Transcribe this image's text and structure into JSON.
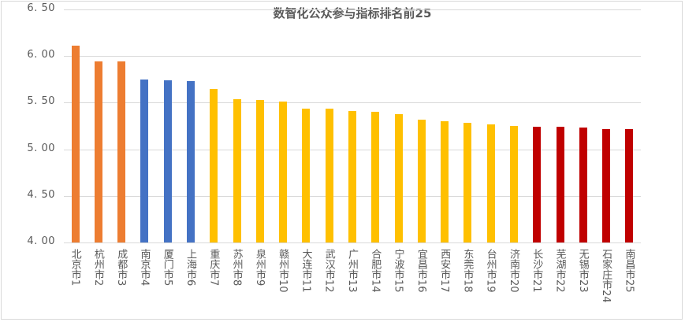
{
  "chart_data": {
    "type": "bar",
    "title": "数智化公众参与指标排名前25",
    "xlabel": "",
    "ylabel": "",
    "ylim": [
      4.0,
      6.5
    ],
    "yticks": [
      "6.50",
      "6.00",
      "5.50",
      "5.00",
      "4.50",
      "4.00"
    ],
    "grid": true,
    "legend": null,
    "categories": [
      "北京市1",
      "杭州市2",
      "成都市3",
      "南京市4",
      "厦门市5",
      "上海市6",
      "重庆市7",
      "苏州市8",
      "泉州市9",
      "赣州市10",
      "大连市11",
      "武汉市12",
      "广州市13",
      "合肥市14",
      "宁波市15",
      "宜昌市16",
      "西安市17",
      "东莞市18",
      "台州市19",
      "济南市20",
      "长沙市21",
      "芜湖市22",
      "无锡市23",
      "石家庄市24",
      "南昌市25"
    ],
    "values": [
      6.11,
      5.94,
      5.94,
      5.75,
      5.74,
      5.73,
      5.65,
      5.54,
      5.53,
      5.51,
      5.44,
      5.44,
      5.41,
      5.4,
      5.38,
      5.32,
      5.3,
      5.28,
      5.27,
      5.25,
      5.24,
      5.24,
      5.23,
      5.22,
      5.22
    ],
    "bar_colors": [
      "#ED7D31",
      "#ED7D31",
      "#ED7D31",
      "#4472C4",
      "#4472C4",
      "#4472C4",
      "#FFC000",
      "#FFC000",
      "#FFC000",
      "#FFC000",
      "#FFC000",
      "#FFC000",
      "#FFC000",
      "#FFC000",
      "#FFC000",
      "#FFC000",
      "#FFC000",
      "#FFC000",
      "#FFC000",
      "#FFC000",
      "#C00000",
      "#C00000",
      "#C00000",
      "#C00000",
      "#C00000"
    ]
  },
  "colors": {
    "tier1": "#ED7D31",
    "tier2": "#4472C4",
    "tier3": "#FFC000",
    "tier4": "#C00000",
    "grid": "#d9d9d9",
    "text": "#595959"
  }
}
